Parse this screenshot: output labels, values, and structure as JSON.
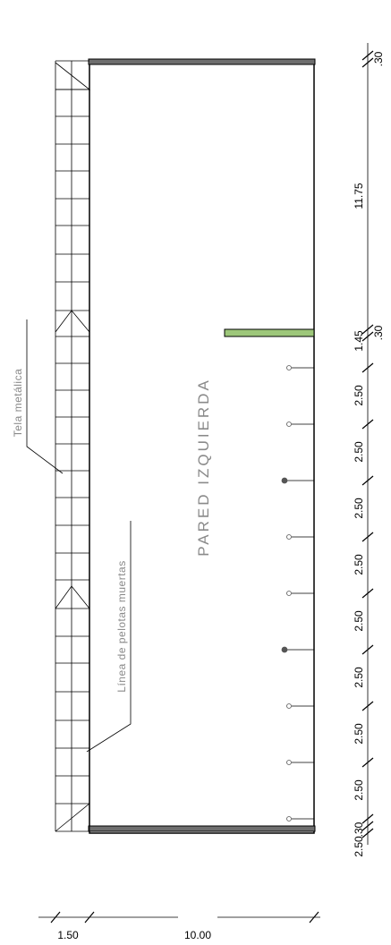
{
  "drawing": {
    "wall_title": "PARED IZQUIERDA",
    "label_fence": "Tela metálica",
    "label_dead_ball_line": "Línea de pelotas muertas"
  },
  "right_dimensions": [
    ".30",
    "11.75",
    ".30",
    "1.45",
    "2.50",
    "2.50",
    "2.50",
    "2.50",
    "2.50",
    "2.50",
    "2.50",
    "2.50",
    "2.50",
    ".30"
  ],
  "bottom_dimensions": [
    "1.50",
    "10.00"
  ],
  "colors": {
    "line": "#000000",
    "wall_cap": "#6e6e6e",
    "marker_bar": "#9dc77a",
    "label_gray": "#8a8a8a"
  }
}
